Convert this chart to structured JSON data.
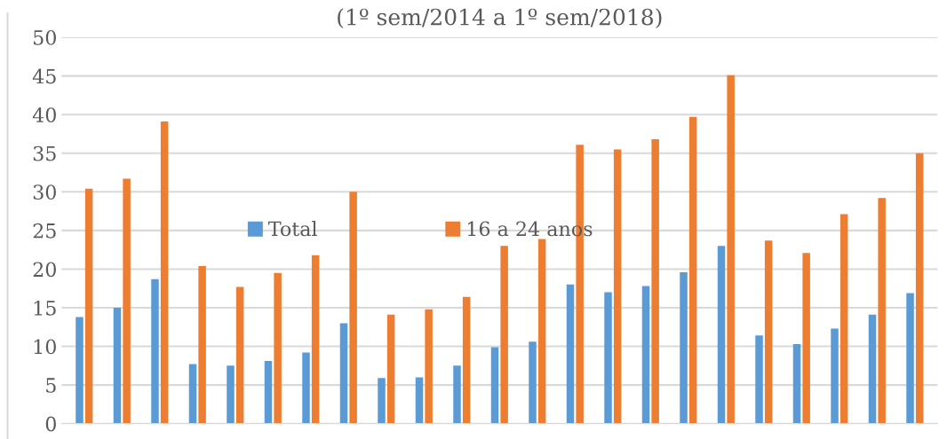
{
  "chart_data": {
    "type": "bar",
    "title": "(1º sem/2014 a 1º sem/2018)",
    "categories": [
      null,
      null,
      null,
      null,
      null,
      null,
      null,
      null,
      null,
      null,
      null,
      null,
      null,
      null,
      null,
      null,
      null,
      null,
      null,
      null,
      null,
      null,
      null
    ],
    "series": [
      {
        "name": "Total",
        "color": "#5b9bd5",
        "values": [
          13.8,
          15.0,
          18.7,
          7.7,
          7.5,
          8.1,
          9.2,
          13.0,
          5.9,
          6.0,
          7.5,
          9.9,
          10.6,
          18.0,
          17.0,
          17.8,
          19.6,
          23.0,
          11.4,
          10.3,
          12.3,
          14.1,
          16.9
        ]
      },
      {
        "name": "16 a 24 anos",
        "color": "#ed7d31",
        "values": [
          30.4,
          31.7,
          39.1,
          20.4,
          17.7,
          19.5,
          21.8,
          30.0,
          14.1,
          14.8,
          16.4,
          23.0,
          23.9,
          36.1,
          35.5,
          36.8,
          39.7,
          45.1,
          23.7,
          22.1,
          27.1,
          29.2,
          35.0
        ]
      }
    ],
    "ylim": [
      0,
      50
    ],
    "yticks": [
      0,
      5,
      10,
      15,
      20,
      25,
      30,
      35,
      40,
      45,
      50
    ],
    "grid": "y",
    "legend": "center"
  }
}
